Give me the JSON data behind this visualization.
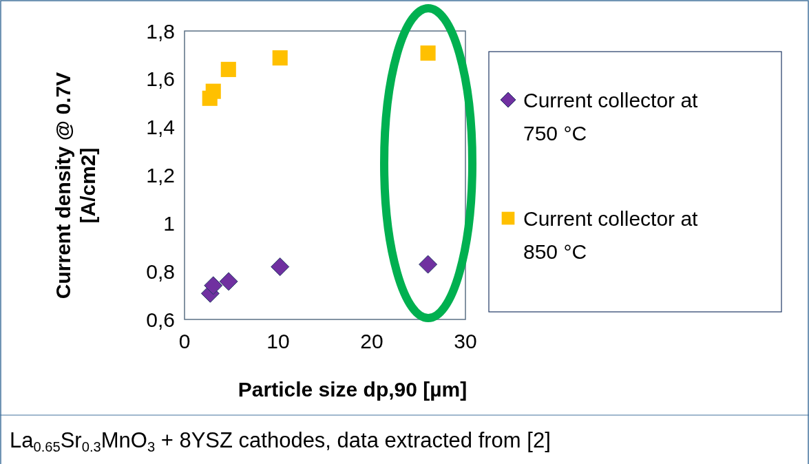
{
  "chart_data": {
    "type": "scatter",
    "xlabel": "Particle size dp,90 [µm]",
    "ylabel": "Current density @ 0.7V [A/cm2]",
    "annotations": [
      "La$_{0.65}$Sr$_{0.3}$MnO$_{3}$ + 8YSZ cathodes, data extracted from [2]"
    ],
    "series": [
      {
        "name": "Current collector at 750 °C",
        "color": "#7030a0",
        "marker": "diamond",
        "x": [
          2.75,
          3.07,
          4.71,
          10.2,
          26.0
        ],
        "values": [
          0.708,
          0.741,
          0.758,
          0.819,
          0.829
        ]
      },
      {
        "name": "Current collector at 850 °C",
        "color": "#ffc000",
        "marker": "square",
        "x": [
          2.7,
          3.07,
          4.69,
          10.2,
          26.0
        ],
        "values": [
          1.52,
          1.549,
          1.64,
          1.688,
          1.708
        ]
      }
    ],
    "xlim": [
      0,
      30
    ],
    "xticks": [
      0,
      10,
      20,
      30
    ],
    "ylim": [
      0.6,
      1.8
    ],
    "yticks": [
      {
        "value": 0.6,
        "label": "0,6"
      },
      {
        "value": 0.8,
        "label": "0,8"
      },
      1,
      {
        "value": 1.2,
        "label": "1,2"
      },
      {
        "value": 1.4,
        "label": "1,4"
      },
      {
        "value": 1.6,
        "label": "1,6"
      },
      {
        "value": 1.8,
        "label": "1,8"
      }
    ],
    "grid": false,
    "legend": "right"
  }
}
